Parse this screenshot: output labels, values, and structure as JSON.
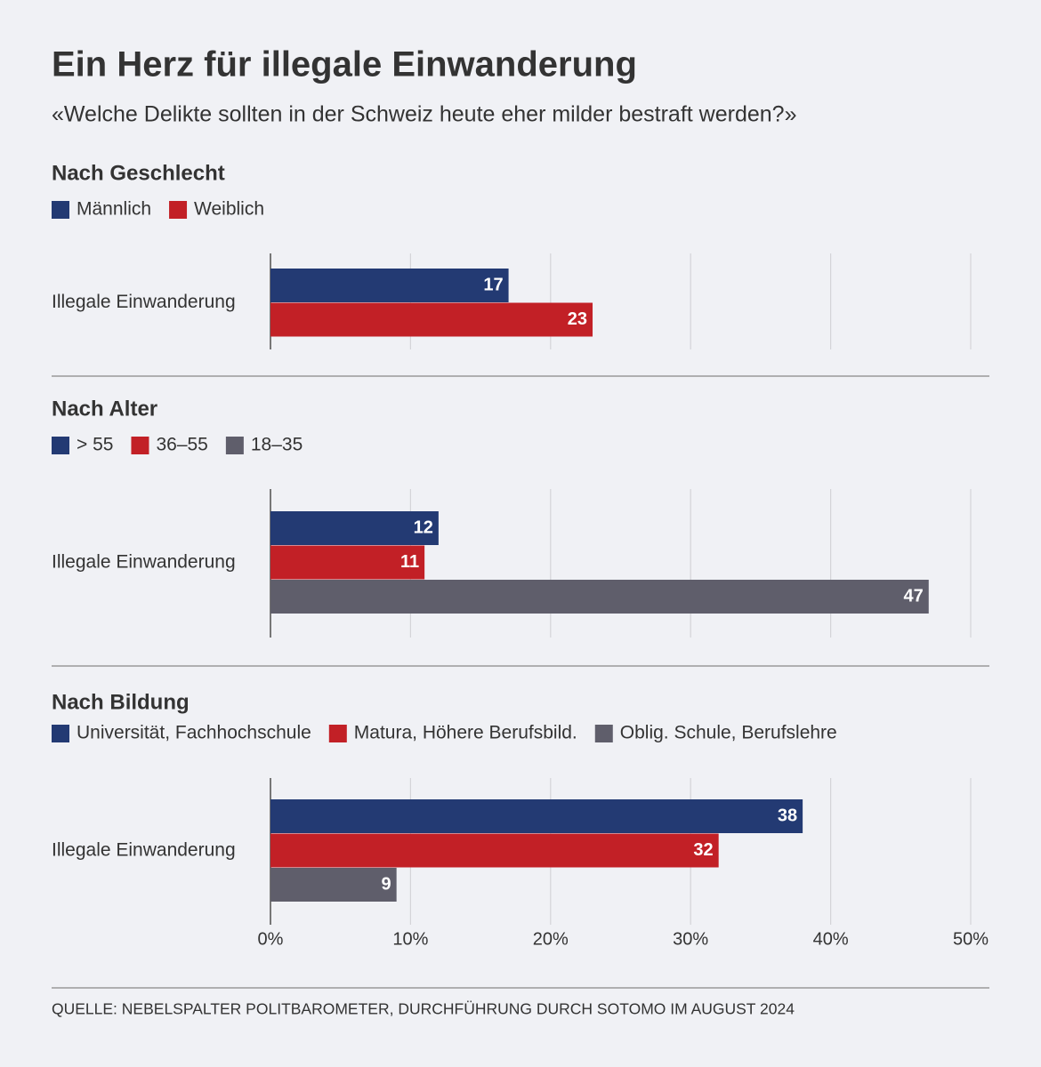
{
  "header": {
    "title": "Ein Herz für illegale Einwanderung",
    "subtitle": "«Welche Delikte sollten in der Schweiz heute eher milder bestraft werden?»"
  },
  "chart_data": [
    {
      "type": "bar",
      "orientation": "horizontal",
      "title": "Nach Geschlecht",
      "categories": [
        "Illegale Einwanderung"
      ],
      "series": [
        {
          "name": "Männlich",
          "color": "#233a73",
          "values": [
            17
          ]
        },
        {
          "name": "Weiblich",
          "color": "#c22026",
          "values": [
            23
          ]
        }
      ],
      "xlim": [
        0,
        50
      ],
      "xticks": [
        0,
        10,
        20,
        30,
        40,
        50
      ],
      "grid": true
    },
    {
      "type": "bar",
      "orientation": "horizontal",
      "title": "Nach Alter",
      "categories": [
        "Illegale Einwanderung"
      ],
      "series": [
        {
          "name": "> 55",
          "color": "#233a73",
          "values": [
            12
          ]
        },
        {
          "name": "36–55",
          "color": "#c22026",
          "values": [
            11
          ]
        },
        {
          "name": "18–35",
          "color": "#5f5e6b",
          "values": [
            47
          ]
        }
      ],
      "xlim": [
        0,
        50
      ],
      "xticks": [
        0,
        10,
        20,
        30,
        40,
        50
      ],
      "grid": true
    },
    {
      "type": "bar",
      "orientation": "horizontal",
      "title": "Nach Bildung",
      "categories": [
        "Illegale Einwanderung"
      ],
      "series": [
        {
          "name": "Universität, Fachhochschule",
          "color": "#233a73",
          "values": [
            38
          ]
        },
        {
          "name": "Matura, Höhere Berufsbild.",
          "color": "#c22026",
          "values": [
            32
          ]
        },
        {
          "name": "Oblig. Schule, Berufslehre",
          "color": "#5f5e6b",
          "values": [
            9
          ]
        }
      ],
      "xlim": [
        0,
        50
      ],
      "xticks": [
        {
          "value": 0,
          "label": "0%"
        },
        {
          "value": 10,
          "label": "10%"
        },
        {
          "value": 20,
          "label": "20%"
        },
        {
          "value": 30,
          "label": "30%"
        },
        {
          "value": 40,
          "label": "40%"
        },
        {
          "value": 50,
          "label": "50%"
        }
      ],
      "grid": true
    }
  ],
  "source": "QUELLE: NEBELSPALTER POLITBAROMETER, DURCHFÜHRUNG DURCH SOTOMO IM AUGUST 2024"
}
